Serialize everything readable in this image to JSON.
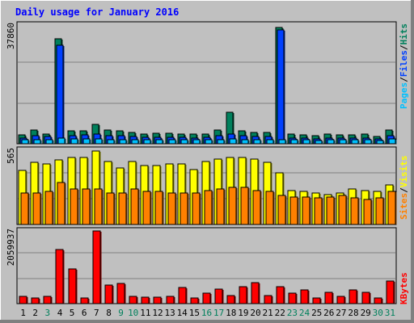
{
  "title": "Daily usage for January 2016",
  "colors": {
    "background": "#c0c0c0",
    "hits": "#00805c",
    "files": "#0040ff",
    "pages": "#00c0ff",
    "visits": "#ffff00",
    "sites": "#ff8000",
    "kbytes": "#ff0000",
    "title": "#0000ff",
    "weekend_day": "#00805c"
  },
  "chart_data": [
    {
      "type": "bar",
      "title": "Daily usage for January 2016",
      "x": [
        "1",
        "2",
        "3",
        "4",
        "5",
        "6",
        "7",
        "8",
        "9",
        "10",
        "11",
        "12",
        "13",
        "14",
        "15",
        "16",
        "17",
        "18",
        "19",
        "20",
        "21",
        "22",
        "23",
        "24",
        "25",
        "26",
        "27",
        "28",
        "29",
        "30",
        "31"
      ],
      "weekend_days": [
        "3",
        "9",
        "10",
        "16",
        "17",
        "23",
        "24",
        "30",
        "31"
      ],
      "ymax_label": "37860",
      "ylim": [
        0,
        37860
      ],
      "grid": true,
      "legend": [
        "Pages",
        "Files",
        "Hits"
      ],
      "series": [
        {
          "name": "Hits",
          "values": [
            2800,
            4300,
            3200,
            33500,
            4200,
            4200,
            6300,
            4300,
            4100,
            3500,
            3000,
            3300,
            3300,
            3100,
            3000,
            3200,
            4500,
            10100,
            4200,
            3600,
            3700,
            37200,
            3000,
            2800,
            2600,
            3000,
            2900,
            2900,
            3000,
            2400,
            4500
          ]
        },
        {
          "name": "Files",
          "values": [
            1700,
            2500,
            2200,
            31500,
            2700,
            2800,
            3200,
            2600,
            2500,
            2200,
            2000,
            2100,
            2100,
            2000,
            1900,
            2100,
            2600,
            3100,
            2600,
            2300,
            2300,
            36300,
            1800,
            1800,
            1600,
            1900,
            1800,
            1800,
            1900,
            1500,
            2600
          ]
        },
        {
          "name": "Pages",
          "values": [
            1200,
            1400,
            1400,
            1900,
            1500,
            1500,
            1500,
            1400,
            1400,
            1300,
            1200,
            1300,
            1300,
            1300,
            1200,
            1300,
            1400,
            1500,
            1400,
            1300,
            1300,
            1300,
            1200,
            1200,
            1100,
            1200,
            1200,
            1200,
            1200,
            1100,
            1600
          ]
        }
      ]
    },
    {
      "type": "bar",
      "ymax_label": "565",
      "ylim": [
        0,
        565
      ],
      "grid": true,
      "legend": [
        "Sites",
        "Visits"
      ],
      "series": [
        {
          "name": "Visits",
          "values": [
            410,
            470,
            460,
            490,
            510,
            510,
            560,
            480,
            430,
            480,
            450,
            450,
            460,
            460,
            420,
            480,
            500,
            510,
            510,
            500,
            470,
            390,
            260,
            250,
            240,
            230,
            240,
            270,
            260,
            250,
            300
          ]
        },
        {
          "name": "Sites",
          "values": [
            240,
            240,
            250,
            320,
            270,
            270,
            270,
            240,
            240,
            270,
            250,
            250,
            240,
            240,
            240,
            260,
            270,
            280,
            280,
            260,
            250,
            220,
            210,
            210,
            200,
            210,
            220,
            200,
            190,
            200,
            250
          ]
        }
      ]
    },
    {
      "type": "bar",
      "ymax_label": "2059937",
      "ylim": [
        0,
        2059937
      ],
      "grid": true,
      "legend": [
        "KBytes"
      ],
      "series": [
        {
          "name": "KBytes",
          "values": [
            210000,
            160000,
            200000,
            1540000,
            980000,
            150000,
            2059937,
            530000,
            580000,
            200000,
            180000,
            180000,
            200000,
            460000,
            150000,
            300000,
            410000,
            220000,
            470000,
            590000,
            230000,
            470000,
            300000,
            400000,
            160000,
            330000,
            210000,
            380000,
            330000,
            150000,
            640000
          ]
        }
      ]
    }
  ]
}
